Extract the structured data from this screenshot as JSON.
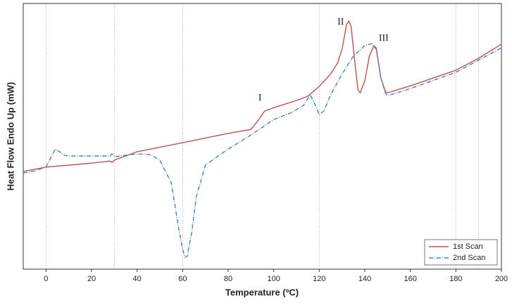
{
  "chart_data": {
    "type": "line",
    "xlabel": "Temperature (ºC)",
    "ylabel": "Heat Flow Endo Up (mW)",
    "xlim": [
      -10,
      200
    ],
    "xticks": [
      0,
      20,
      40,
      60,
      80,
      100,
      120,
      140,
      160,
      180,
      200
    ],
    "ylim": [
      0,
      100
    ],
    "grid_x": [
      0,
      30,
      60,
      120,
      180,
      190
    ],
    "legend": "lower right",
    "series": [
      {
        "name": "1st Scan",
        "color": "#c0504d",
        "style": "solid",
        "x": [
          -10,
          0,
          20,
          28,
          29,
          30,
          40,
          60,
          80,
          90,
          93,
          96,
          100,
          110,
          115,
          120,
          125,
          128,
          130,
          132,
          133,
          134,
          136,
          137,
          138,
          140,
          142,
          144,
          145,
          147,
          149,
          150,
          160,
          180,
          190,
          200
        ],
        "values": [
          36.8,
          38.4,
          39.9,
          40.7,
          40.2,
          41.0,
          44.2,
          47.6,
          51.1,
          52.6,
          55.8,
          59.5,
          60.8,
          63.5,
          65.1,
          68.8,
          73.5,
          77.5,
          82.8,
          92.1,
          93.4,
          91.3,
          74.9,
          67.5,
          66.4,
          70.9,
          80.2,
          84.1,
          83.3,
          72.2,
          66.9,
          66.4,
          69.0,
          74.9,
          79.4,
          84.7
        ]
      },
      {
        "name": "2nd Scan",
        "color": "#4a7ebb",
        "style": "dashdot",
        "x": [
          -10,
          -5,
          0,
          2,
          4,
          6,
          8,
          10,
          28,
          29,
          30,
          40,
          46,
          50,
          55,
          58,
          60,
          61,
          62,
          64,
          66,
          70,
          80,
          90,
          100,
          108,
          113,
          116,
          118,
          120,
          122,
          125,
          130,
          135,
          140,
          143,
          145,
          147,
          149,
          150,
          160,
          180,
          200
        ],
        "values": [
          36.2,
          37.0,
          38.4,
          41.8,
          45.2,
          44.2,
          42.9,
          42.6,
          42.6,
          43.4,
          42.3,
          43.4,
          43.1,
          41.0,
          32.5,
          16.7,
          7.4,
          4.5,
          4.8,
          14.0,
          27.2,
          39.2,
          45.2,
          50.5,
          56.3,
          59.0,
          61.6,
          65.6,
          62.2,
          58.2,
          59.5,
          65.6,
          73.5,
          80.2,
          84.1,
          84.9,
          82.8,
          72.2,
          66.4,
          65.3,
          68.0,
          74.1,
          83.3
        ]
      }
    ],
    "annotations": [
      {
        "text": "I",
        "x": 94,
        "y": 64.3
      },
      {
        "text": "II",
        "x": 129.4,
        "y": 92.9
      },
      {
        "text": "III",
        "x": 148.3,
        "y": 86.8
      }
    ]
  }
}
